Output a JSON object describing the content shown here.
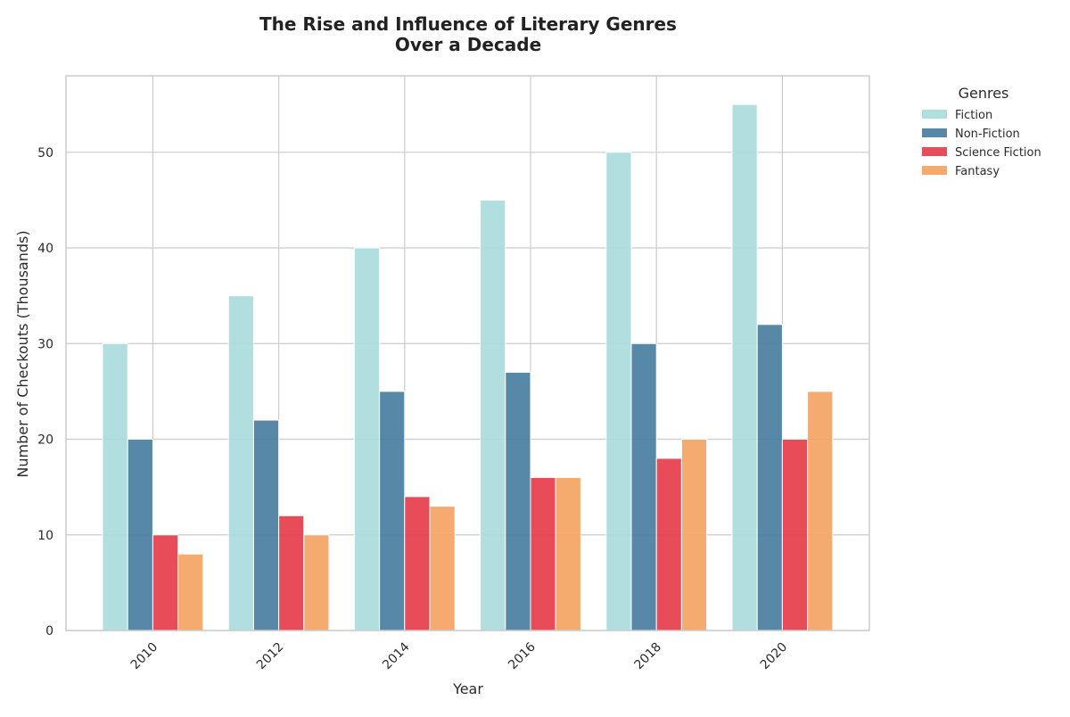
{
  "chart_data": {
    "type": "bar",
    "title_lines": [
      "The Rise and Influence of Literary Genres",
      "Over a Decade"
    ],
    "xlabel": "Year",
    "ylabel": "Number of Checkouts (Thousands)",
    "categories": [
      "2010",
      "2012",
      "2014",
      "2016",
      "2018",
      "2020"
    ],
    "ylim": [
      0,
      58
    ],
    "yticks": [
      0,
      10,
      20,
      30,
      40,
      50
    ],
    "grid": true,
    "legend": {
      "title": "Genres",
      "placement": "outside-top-right"
    },
    "series": [
      {
        "name": "Fiction",
        "color": "#a8dadc",
        "values": [
          30,
          35,
          40,
          45,
          50,
          55
        ]
      },
      {
        "name": "Non-Fiction",
        "color": "#457b9d",
        "values": [
          20,
          22,
          25,
          27,
          30,
          32
        ]
      },
      {
        "name": "Science Fiction",
        "color": "#e63946",
        "values": [
          10,
          12,
          14,
          16,
          18,
          20
        ]
      },
      {
        "name": "Fantasy",
        "color": "#f4a261",
        "values": [
          8,
          10,
          13,
          16,
          20,
          25
        ]
      }
    ]
  }
}
